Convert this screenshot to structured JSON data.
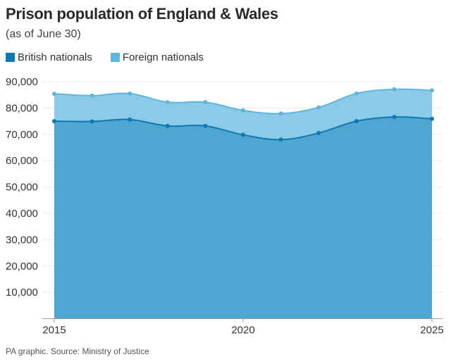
{
  "chart_data": {
    "type": "area",
    "stacked": true,
    "title": "Prison population of England & Wales",
    "subtitle": "(as of June 30)",
    "x": [
      2015,
      2016,
      2017,
      2018,
      2019,
      2020,
      2021,
      2022,
      2023,
      2024,
      2025
    ],
    "series": [
      {
        "name": "British nationals",
        "color": "#4fa7d1",
        "line_color": "#0f78b0",
        "values": [
          75000,
          74900,
          75600,
          73200,
          73200,
          69800,
          68000,
          70500,
          75000,
          76600,
          75900
        ]
      },
      {
        "name": "Foreign nationals",
        "color": "#8ccbe8",
        "line_color": "#5fb5dd",
        "values": [
          10400,
          9800,
          9900,
          9000,
          9000,
          9300,
          9900,
          9700,
          10500,
          10500,
          10800
        ]
      }
    ],
    "ylim": [
      0,
      90000
    ],
    "y_ticks": [
      "10,000",
      "20,000",
      "30,000",
      "40,000",
      "50,000",
      "60,000",
      "70,000",
      "80,000",
      "90,000"
    ],
    "x_ticks": [
      "2015",
      "2020",
      "2025"
    ],
    "grid": true,
    "legend": "top-left",
    "source": "PA graphic. Source: Ministry of Justice"
  }
}
